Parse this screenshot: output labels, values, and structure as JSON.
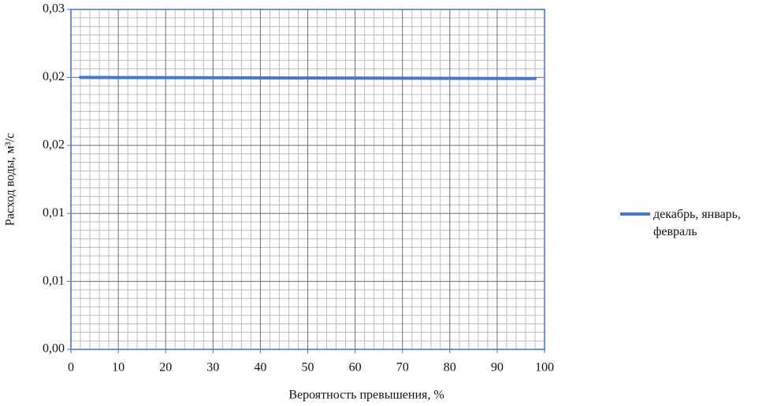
{
  "chart_data": {
    "type": "line",
    "x_label": "Вероятность превышения, %",
    "y_label": "Расход воды, м³/с",
    "x": [
      2,
      50,
      98
    ],
    "series": [
      {
        "name": "декабрь, январь, февраль",
        "color": "#4a78c8",
        "values": [
          0.024,
          0.02395,
          0.0239
        ]
      }
    ],
    "xlim": [
      0,
      100
    ],
    "xticks": [
      0,
      10,
      20,
      30,
      40,
      50,
      60,
      70,
      80,
      90,
      100
    ],
    "ylim": [
      0,
      0.03
    ],
    "yticks": [
      {
        "value": 0,
        "label": "0,00"
      },
      {
        "value": 0.006,
        "label": "0,01"
      },
      {
        "value": 0.012,
        "label": "0,01"
      },
      {
        "value": 0.018,
        "label": "0,02"
      },
      {
        "value": 0.024,
        "label": "0,02"
      },
      {
        "value": 0.03,
        "label": "0,03"
      }
    ],
    "grid": true,
    "minor_grid": true,
    "legend": "right"
  }
}
